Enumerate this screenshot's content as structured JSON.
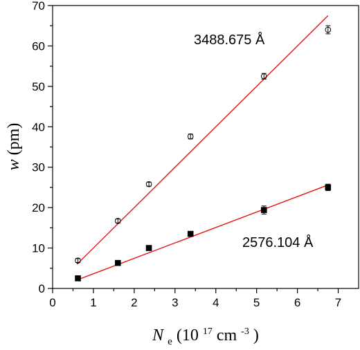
{
  "chart_data": {
    "type": "scatter",
    "xlabel": {
      "symbol": "N",
      "subscript": "e",
      "unit_open": " (10",
      "unit_exp1": "17",
      "unit_mid": " cm",
      "unit_exp2": "-3",
      "unit_close": ")"
    },
    "ylabel": {
      "symbol": "w",
      "unit": " (pm)"
    },
    "xlim": [
      0,
      7.5
    ],
    "ylim": [
      0,
      70
    ],
    "xticks": [
      "0",
      "1",
      "2",
      "3",
      "4",
      "5",
      "6",
      "7"
    ],
    "yticks": [
      "0",
      "10",
      "20",
      "30",
      "40",
      "50",
      "60",
      "70"
    ],
    "grid": false,
    "series": [
      {
        "name": "3488.675 Å",
        "marker": "open-circle",
        "color": "#e81010",
        "x": [
          0.62,
          1.6,
          2.36,
          3.38,
          5.18,
          6.75
        ],
        "y": [
          6.9,
          16.7,
          25.8,
          37.6,
          52.5,
          64.0
        ],
        "yerr": [
          0.5,
          0.5,
          0.5,
          0.6,
          0.7,
          1.0
        ],
        "fit": {
          "x": [
            0.6,
            6.75
          ],
          "y": [
            6.0,
            67.5
          ]
        }
      },
      {
        "name": "2576.104 Å",
        "marker": "filled-square",
        "color": "#e81010",
        "x": [
          0.62,
          1.6,
          2.36,
          3.38,
          5.18,
          6.75
        ],
        "y": [
          2.5,
          6.3,
          10.0,
          13.5,
          19.4,
          25.0
        ],
        "yerr": [
          0.5,
          0.5,
          0.5,
          0.5,
          1.0,
          0.8
        ],
        "fit": {
          "x": [
            0.6,
            6.75
          ],
          "y": [
            2.1,
            25.6
          ]
        }
      }
    ]
  }
}
